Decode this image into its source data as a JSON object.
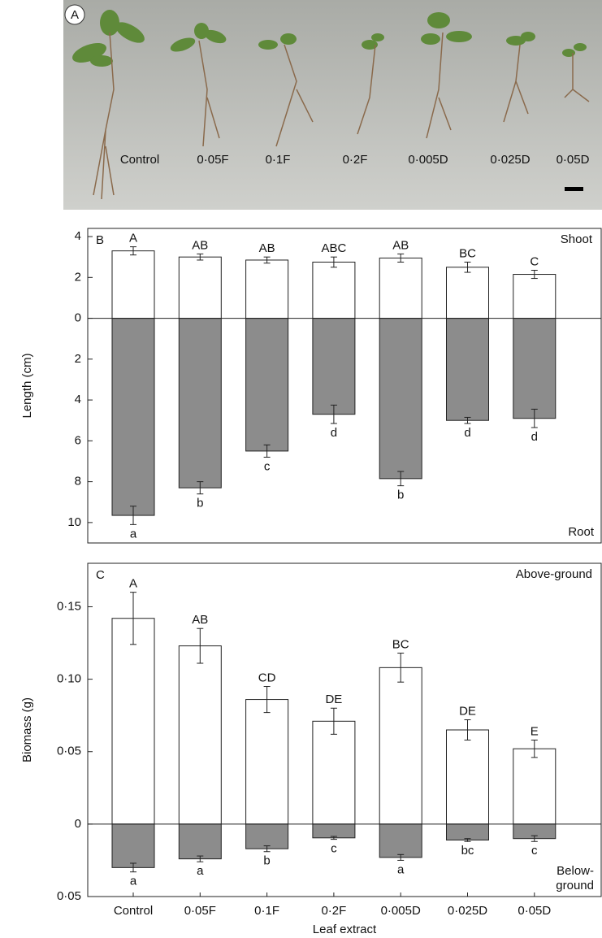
{
  "chart_data": [
    {
      "type": "photo",
      "panel": "A",
      "labels": [
        "Control",
        "0·05F",
        "0·1F",
        "0·2F",
        "0·005D",
        "0·025D",
        "0·05D"
      ]
    },
    {
      "type": "bar",
      "panel": "B",
      "ylabel": "Length (cm)",
      "ylim": [
        -11,
        4.4
      ],
      "yticks": [
        4,
        2,
        0,
        {
          "value": -2,
          "label": "2"
        },
        {
          "value": -4,
          "label": "4"
        },
        {
          "value": -6,
          "label": "6"
        },
        {
          "value": -8,
          "label": "8"
        },
        {
          "value": -10,
          "label": "10"
        }
      ],
      "series": [
        {
          "name": "Shoot",
          "color": "#ffffff",
          "values": [
            3.3,
            3.0,
            2.85,
            2.75,
            2.95,
            2.5,
            2.15
          ],
          "errors": [
            0.2,
            0.15,
            0.15,
            0.25,
            0.2,
            0.25,
            0.2
          ],
          "letters": [
            "A",
            "AB",
            "AB",
            "ABC",
            "AB",
            "BC",
            "C"
          ]
        },
        {
          "name": "Root",
          "color": "#8c8c8c",
          "values": [
            -9.65,
            -8.3,
            -6.5,
            -4.7,
            -7.85,
            -5.0,
            -4.9
          ],
          "errors": [
            0.45,
            0.3,
            0.3,
            0.45,
            0.35,
            0.15,
            0.45
          ],
          "letters": [
            "a",
            "b",
            "c",
            "d",
            "b",
            "d",
            "d"
          ]
        }
      ]
    },
    {
      "type": "bar",
      "panel": "C",
      "ylabel": "Biomass (g)",
      "xlabel": "Leaf extract",
      "categories": [
        "Control",
        "0·05F",
        "0·1F",
        "0·2F",
        "0·005D",
        "0·025D",
        "0·05D"
      ],
      "ylim": [
        -0.05,
        0.18
      ],
      "yticks": [
        {
          "value": 0.15,
          "label": "0·15"
        },
        {
          "value": 0.1,
          "label": "0·10"
        },
        {
          "value": 0.05,
          "label": "0·05"
        },
        0,
        {
          "value": -0.05,
          "label": "0·05"
        }
      ],
      "series": [
        {
          "name": "Above-ground",
          "color": "#ffffff",
          "values": [
            0.142,
            0.123,
            0.086,
            0.071,
            0.108,
            0.065,
            0.052
          ],
          "errors": [
            0.018,
            0.012,
            0.009,
            0.009,
            0.01,
            0.007,
            0.006
          ],
          "letters": [
            "A",
            "AB",
            "CD",
            "DE",
            "BC",
            "DE",
            "E"
          ]
        },
        {
          "name": "Below-ground",
          "color": "#8c8c8c",
          "values": [
            -0.03,
            -0.024,
            -0.017,
            -0.0095,
            -0.023,
            -0.011,
            -0.01
          ],
          "errors": [
            0.003,
            0.002,
            0.002,
            0.001,
            0.002,
            0.001,
            0.002
          ],
          "letters": [
            "a",
            "a",
            "b",
            "c",
            "a",
            "bc",
            "c"
          ]
        }
      ]
    }
  ]
}
